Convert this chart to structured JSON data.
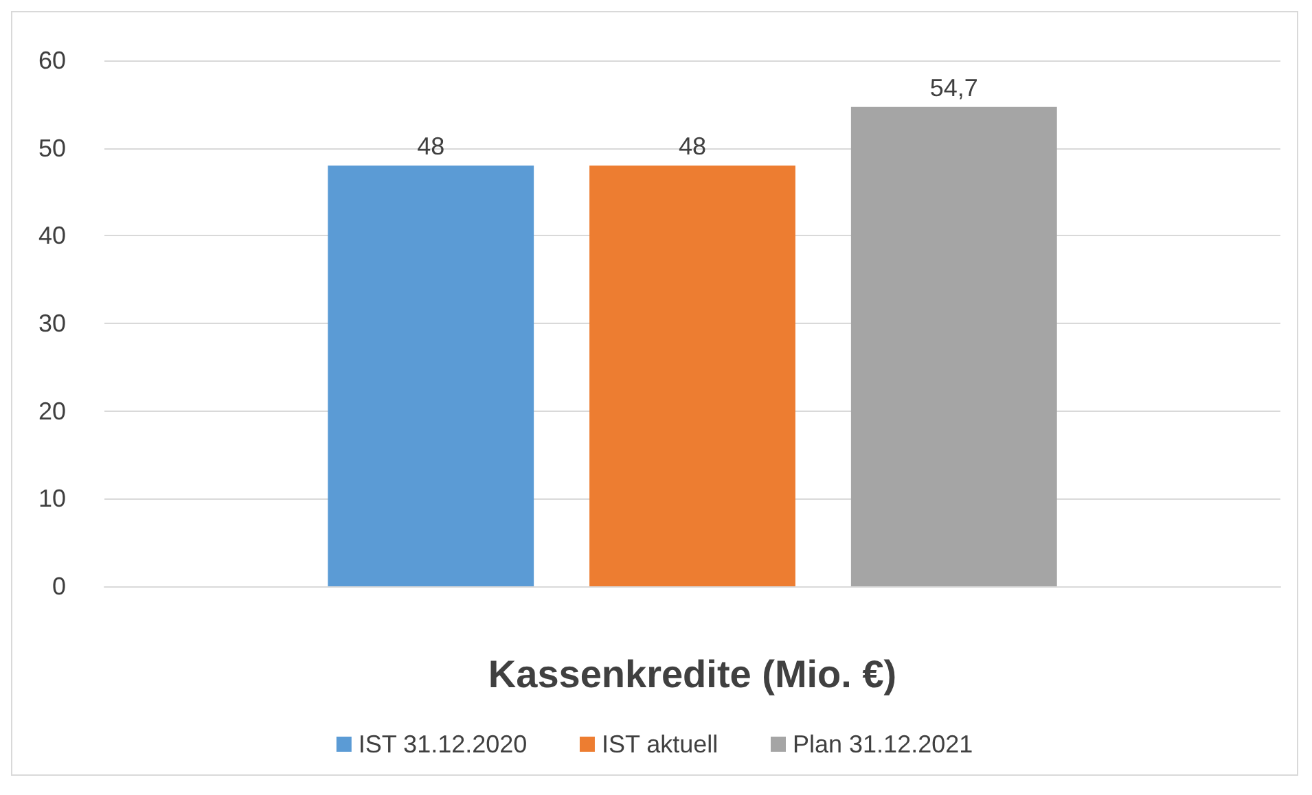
{
  "chart_data": {
    "type": "bar",
    "xlabel": "Kassenkredite (Mio. €)",
    "categories": [
      null
    ],
    "series": [
      {
        "name": "IST 31.12.2020",
        "color": "#5b9bd5",
        "values": [
          48
        ],
        "value_labels": [
          "48"
        ]
      },
      {
        "name": "IST aktuell",
        "color": "#ed7d31",
        "values": [
          48
        ],
        "value_labels": [
          "48"
        ]
      },
      {
        "name": "Plan 31.12.2021",
        "color": "#a5a5a5",
        "values": [
          54.7
        ],
        "value_labels": [
          "54,7"
        ]
      }
    ],
    "ylim": [
      0,
      60
    ],
    "yticks": [
      0,
      10,
      20,
      30,
      40,
      50,
      60
    ],
    "grid": "y",
    "legend": "bottom"
  }
}
